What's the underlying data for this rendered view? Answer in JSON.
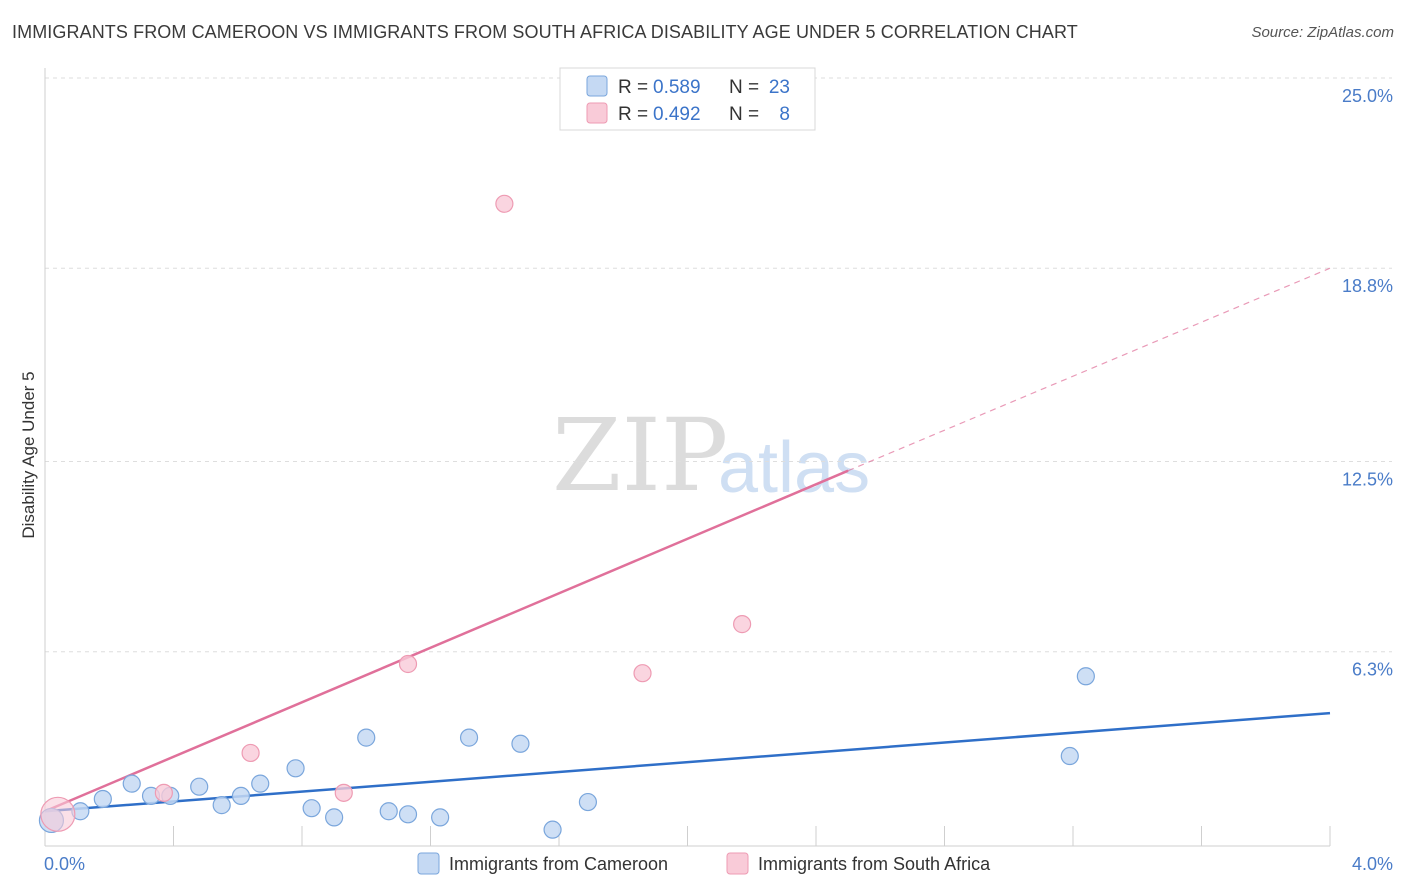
{
  "header": {
    "title": "IMMIGRANTS FROM CAMEROON VS IMMIGRANTS FROM SOUTH AFRICA DISABILITY AGE UNDER 5 CORRELATION CHART",
    "source": "Source: ZipAtlas.com"
  },
  "watermark": {
    "zip": "ZIP",
    "atlas": "atlas"
  },
  "legend": {
    "r_label": "R =",
    "n_label": "N =",
    "series": [
      {
        "r": "0.589",
        "n": "23"
      },
      {
        "r": "0.492",
        "n": "8"
      }
    ]
  },
  "chart_data": {
    "type": "scatter",
    "title": "IMMIGRANTS FROM CAMEROON VS IMMIGRANTS FROM SOUTH AFRICA DISABILITY AGE UNDER 5 CORRELATION CHART",
    "xlabel": "",
    "ylabel": "Disability Age Under 5",
    "xlim": [
      0.0,
      4.0
    ],
    "ylim": [
      0.0,
      25.0
    ],
    "x_tick_labels": [
      "0.0%",
      "4.0%"
    ],
    "y_ticks": [
      6.3,
      12.5,
      18.8,
      25.0
    ],
    "y_tick_labels": [
      "6.3%",
      "12.5%",
      "18.8%",
      "25.0%"
    ],
    "colors": {
      "cameroon_fill": "#c5d9f3",
      "cameroon_stroke": "#7aa6dc",
      "cameroon_line": "#2f6fc8",
      "south_africa_fill": "#f9cbd8",
      "south_africa_stroke": "#ee9bb3",
      "south_africa_line": "#e0709a"
    },
    "series": [
      {
        "name": "Immigrants from Cameroon",
        "r": 0.589,
        "n": 23,
        "points": [
          [
            0.02,
            0.8
          ],
          [
            0.11,
            1.1
          ],
          [
            0.18,
            1.5
          ],
          [
            0.27,
            2.0
          ],
          [
            0.33,
            1.6
          ],
          [
            0.39,
            1.6
          ],
          [
            0.48,
            1.9
          ],
          [
            0.55,
            1.3
          ],
          [
            0.61,
            1.6
          ],
          [
            0.67,
            2.0
          ],
          [
            0.78,
            2.5
          ],
          [
            0.83,
            1.2
          ],
          [
            0.9,
            0.9
          ],
          [
            1.0,
            3.5
          ],
          [
            1.07,
            1.1
          ],
          [
            1.13,
            1.0
          ],
          [
            1.23,
            0.9
          ],
          [
            1.32,
            3.5
          ],
          [
            1.48,
            3.3
          ],
          [
            1.58,
            0.5
          ],
          [
            1.69,
            1.4
          ],
          [
            3.19,
            2.9
          ],
          [
            3.24,
            5.5
          ]
        ],
        "trend": {
          "x": [
            0.0,
            4.0
          ],
          "y": [
            1.1,
            4.3
          ]
        }
      },
      {
        "name": "Immigrants from South Africa",
        "r": 0.492,
        "n": 8,
        "points": [
          [
            0.04,
            1.0
          ],
          [
            0.37,
            1.7
          ],
          [
            0.64,
            3.0
          ],
          [
            0.93,
            1.7
          ],
          [
            1.13,
            5.9
          ],
          [
            1.43,
            20.9
          ],
          [
            1.86,
            5.6
          ],
          [
            2.17,
            7.2
          ]
        ],
        "trend": {
          "x": [
            0.0,
            2.5
          ],
          "y": [
            1.1,
            12.2
          ]
        },
        "trend_extension": {
          "x": [
            2.5,
            4.0
          ],
          "y": [
            12.2,
            18.8
          ]
        }
      }
    ]
  }
}
